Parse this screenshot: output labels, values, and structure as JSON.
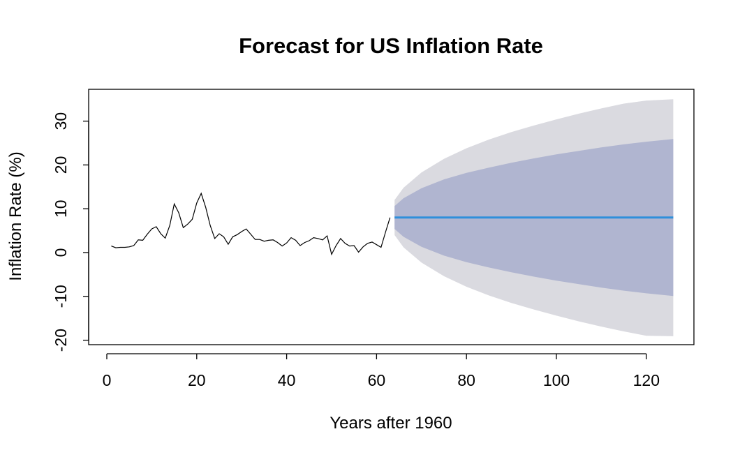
{
  "chart_data": {
    "type": "line",
    "title": "Forecast for US Inflation Rate",
    "xlabel": "Years after 1960",
    "ylabel": "Inflation Rate (%)",
    "xlim": [
      1,
      126
    ],
    "ylim": [
      -20,
      35
    ],
    "x_ticks": [
      0,
      20,
      40,
      60,
      80,
      100,
      120
    ],
    "y_ticks": [
      -20,
      -10,
      0,
      10,
      20,
      30
    ],
    "grid": false,
    "legend": "none",
    "colors": {
      "historical": "#000000",
      "forecast": "#2f8fdb",
      "band_80": "#b0b5d0",
      "band_95": "#dadae0"
    },
    "series": [
      {
        "type": "line",
        "x": [
          1,
          2,
          3,
          4,
          5,
          6,
          7,
          8,
          9,
          10,
          11,
          12,
          13,
          14,
          15,
          16,
          17,
          18,
          19,
          20,
          21,
          22,
          23,
          24,
          25,
          26,
          27,
          28,
          29,
          30,
          31,
          32,
          33,
          34,
          35,
          36,
          37,
          38,
          39,
          40,
          41,
          42,
          43,
          44,
          45,
          46,
          47,
          48,
          49,
          50,
          51,
          52,
          53,
          54,
          55,
          56,
          57,
          58,
          59,
          60,
          61,
          62,
          63
        ],
        "values": [
          1.5,
          1.1,
          1.2,
          1.2,
          1.3,
          1.6,
          2.9,
          2.8,
          4.2,
          5.4,
          5.9,
          4.3,
          3.3,
          6.2,
          11.1,
          9.1,
          5.7,
          6.5,
          7.6,
          11.3,
          13.5,
          10.3,
          6.2,
          3.2,
          4.3,
          3.6,
          1.9,
          3.6,
          4.1,
          4.8,
          5.4,
          4.2,
          3.0,
          3.0,
          2.6,
          2.8,
          2.9,
          2.3,
          1.5,
          2.2,
          3.4,
          2.8,
          1.6,
          2.3,
          2.7,
          3.4,
          3.2,
          2.9,
          3.8,
          -0.4,
          1.6,
          3.2,
          2.1,
          1.5,
          1.6,
          0.1,
          1.3,
          2.1,
          2.4,
          1.8,
          1.2,
          4.7,
          8.0
        ]
      },
      {
        "type": "line",
        "x_start": 64,
        "x_end": 126,
        "value": 8.0
      },
      {
        "type": "area",
        "level": "80%",
        "x": [
          64,
          66,
          70,
          75,
          80,
          85,
          90,
          95,
          100,
          105,
          110,
          115,
          120,
          126
        ],
        "lower": [
          5.4,
          3.6,
          1.3,
          -0.7,
          -2.2,
          -3.4,
          -4.5,
          -5.5,
          -6.4,
          -7.2,
          -8.0,
          -8.7,
          -9.3,
          -9.9
        ],
        "upper": [
          10.6,
          12.4,
          14.7,
          16.7,
          18.2,
          19.4,
          20.5,
          21.5,
          22.4,
          23.2,
          24.0,
          24.7,
          25.3,
          25.9
        ]
      },
      {
        "type": "area",
        "level": "95%",
        "x": [
          64,
          66,
          70,
          75,
          80,
          85,
          90,
          95,
          100,
          105,
          110,
          115,
          120,
          126
        ],
        "lower": [
          4.0,
          1.2,
          -2.3,
          -5.4,
          -7.8,
          -9.8,
          -11.5,
          -13.0,
          -14.4,
          -15.7,
          -16.9,
          -18.0,
          -19.0,
          -19.1
        ],
        "upper": [
          12.0,
          14.8,
          18.3,
          21.4,
          23.8,
          25.8,
          27.5,
          29.0,
          30.4,
          31.7,
          32.9,
          34.0,
          34.7,
          35.0
        ]
      }
    ]
  }
}
